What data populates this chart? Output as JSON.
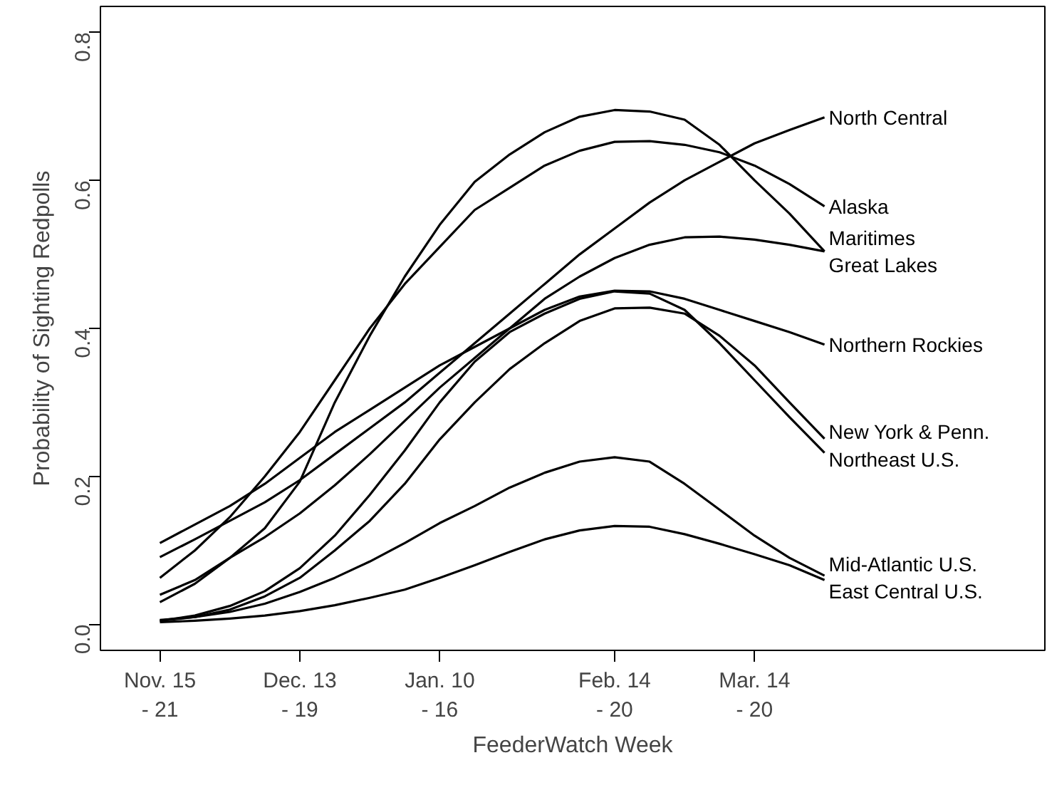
{
  "chart_data": {
    "type": "line",
    "xlabel": "FeederWatch Week",
    "ylabel": "Probability of Sighting Redpolls",
    "categories": [
      "Nov. 15\n- 21",
      null,
      null,
      null,
      "Dec. 13\n- 19",
      null,
      null,
      null,
      "Jan. 10\n- 16",
      null,
      null,
      null,
      null,
      "Feb. 14\n- 20",
      null,
      null,
      null,
      "Mar. 14\n- 20",
      null,
      null
    ],
    "ylim": [
      -0.035,
      0.835
    ],
    "yticks": [
      {
        "value": 0,
        "label": "0.0"
      },
      {
        "value": 0.2,
        "label": "0.2"
      },
      {
        "value": 0.4,
        "label": "0.4"
      },
      {
        "value": 0.6,
        "label": "0.6"
      },
      {
        "value": 0.8,
        "label": "0.8"
      }
    ],
    "grid": false,
    "legend": false,
    "marker": "none",
    "line_style": "solid",
    "series": [
      {
        "name": "North Central",
        "color": "#000000",
        "values": [
          0.091,
          0.115,
          0.14,
          0.165,
          0.195,
          0.23,
          0.265,
          0.3,
          0.34,
          0.38,
          0.42,
          0.46,
          0.5,
          0.535,
          0.57,
          0.6,
          0.625,
          0.65,
          0.668,
          0.685
        ]
      },
      {
        "name": "Alaska",
        "color": "#000000",
        "values": [
          0.063,
          0.1,
          0.145,
          0.2,
          0.26,
          0.33,
          0.4,
          0.46,
          0.51,
          0.56,
          0.59,
          0.62,
          0.64,
          0.652,
          0.653,
          0.648,
          0.638,
          0.62,
          0.595,
          0.565
        ]
      },
      {
        "name": "Maritimes",
        "color": "#000000",
        "values": [
          0.03,
          0.055,
          0.09,
          0.13,
          0.193,
          0.3,
          0.39,
          0.47,
          0.54,
          0.598,
          0.635,
          0.665,
          0.686,
          0.695,
          0.693,
          0.682,
          0.648,
          0.6,
          0.555,
          0.504
        ]
      },
      {
        "name": "Great Lakes",
        "color": "#000000",
        "values": [
          0.04,
          0.06,
          0.09,
          0.118,
          0.15,
          0.188,
          0.23,
          0.275,
          0.32,
          0.36,
          0.4,
          0.44,
          0.47,
          0.495,
          0.513,
          0.523,
          0.524,
          0.52,
          0.513,
          0.504
        ]
      },
      {
        "name": "Northern Rockies",
        "color": "#000000",
        "values": [
          0.11,
          0.135,
          0.16,
          0.19,
          0.225,
          0.26,
          0.29,
          0.32,
          0.35,
          0.375,
          0.4,
          0.425,
          0.443,
          0.451,
          0.45,
          0.44,
          0.425,
          0.41,
          0.395,
          0.378
        ]
      },
      {
        "name": "New York & Penn.",
        "color": "#000000",
        "values": [
          0.005,
          0.01,
          0.02,
          0.038,
          0.063,
          0.1,
          0.14,
          0.19,
          0.25,
          0.3,
          0.345,
          0.38,
          0.41,
          0.427,
          0.428,
          0.42,
          0.39,
          0.35,
          0.3,
          0.251
        ]
      },
      {
        "name": "Northeast U.S.",
        "color": "#000000",
        "values": [
          0.005,
          0.012,
          0.025,
          0.045,
          0.076,
          0.12,
          0.175,
          0.235,
          0.3,
          0.355,
          0.395,
          0.42,
          0.44,
          0.45,
          0.447,
          0.425,
          0.38,
          0.33,
          0.28,
          0.232
        ]
      },
      {
        "name": "Mid-Atlantic U.S.",
        "color": "#000000",
        "values": [
          0.006,
          0.01,
          0.017,
          0.028,
          0.044,
          0.063,
          0.085,
          0.11,
          0.137,
          0.16,
          0.185,
          0.205,
          0.22,
          0.226,
          0.22,
          0.19,
          0.155,
          0.12,
          0.09,
          0.066
        ]
      },
      {
        "name": "East Central U.S.",
        "color": "#000000",
        "values": [
          0.003,
          0.005,
          0.008,
          0.012,
          0.018,
          0.026,
          0.036,
          0.047,
          0.063,
          0.08,
          0.098,
          0.115,
          0.127,
          0.133,
          0.132,
          0.122,
          0.109,
          0.095,
          0.08,
          0.06
        ]
      }
    ]
  }
}
